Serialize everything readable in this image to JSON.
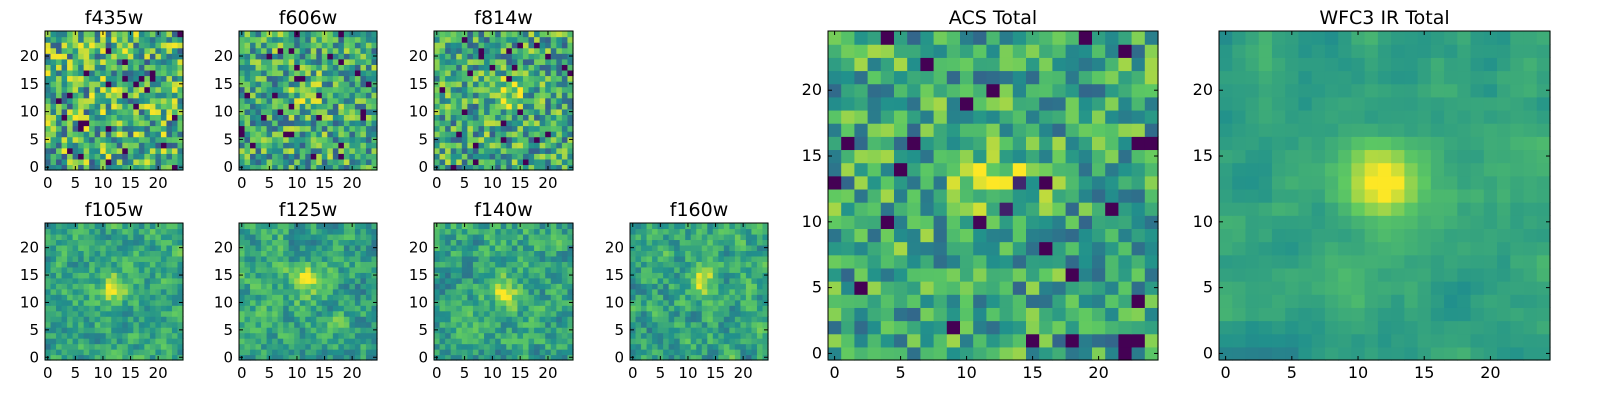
{
  "figure": {
    "colormap": "viridis",
    "colormap_stops": [
      "#440154",
      "#3b528b",
      "#21918c",
      "#5ec962",
      "#fde725"
    ]
  },
  "chart_data": [
    {
      "type": "heatmap",
      "title": "f435w",
      "xlim": [
        0,
        24
      ],
      "ylim": [
        0,
        24
      ],
      "xticks": [
        0,
        5,
        10,
        15,
        20
      ],
      "yticks": [
        0,
        5,
        10,
        15,
        20
      ],
      "source_peak": [
        12,
        13
      ],
      "peak_strength": 0.05,
      "noise_level": 0.38,
      "smoothness": 0.0,
      "seed": 11
    },
    {
      "type": "heatmap",
      "title": "f606w",
      "xlim": [
        0,
        24
      ],
      "ylim": [
        0,
        24
      ],
      "xticks": [
        0,
        5,
        10,
        15,
        20
      ],
      "yticks": [
        0,
        5,
        10,
        15,
        20
      ],
      "source_peak": [
        12,
        13
      ],
      "peak_strength": 0.25,
      "noise_level": 0.32,
      "smoothness": 0.0,
      "seed": 23
    },
    {
      "type": "heatmap",
      "title": "f814w",
      "xlim": [
        0,
        24
      ],
      "ylim": [
        0,
        24
      ],
      "xticks": [
        0,
        5,
        10,
        15,
        20
      ],
      "yticks": [
        0,
        5,
        10,
        15,
        20
      ],
      "source_peak": [
        13,
        13
      ],
      "peak_strength": 0.3,
      "noise_level": 0.32,
      "smoothness": 0.0,
      "seed": 37
    },
    {
      "type": "heatmap",
      "title": "f105w",
      "xlim": [
        0,
        24
      ],
      "ylim": [
        0,
        24
      ],
      "xticks": [
        0,
        5,
        10,
        15,
        20
      ],
      "yticks": [
        0,
        5,
        10,
        15,
        20
      ],
      "source_peak": [
        12,
        13
      ],
      "peak_strength": 0.35,
      "noise_level": 0.28,
      "smoothness": 0.5,
      "seed": 41
    },
    {
      "type": "heatmap",
      "title": "f125w",
      "xlim": [
        0,
        24
      ],
      "ylim": [
        0,
        24
      ],
      "xticks": [
        0,
        5,
        10,
        15,
        20
      ],
      "yticks": [
        0,
        5,
        10,
        15,
        20
      ],
      "source_peak": [
        12,
        14
      ],
      "peak_strength": 0.3,
      "noise_level": 0.3,
      "smoothness": 0.5,
      "seed": 53
    },
    {
      "type": "heatmap",
      "title": "f140w",
      "xlim": [
        0,
        24
      ],
      "ylim": [
        0,
        24
      ],
      "xticks": [
        0,
        5,
        10,
        15,
        20
      ],
      "yticks": [
        0,
        5,
        10,
        15,
        20
      ],
      "source_peak": [
        12,
        12
      ],
      "peak_strength": 0.3,
      "noise_level": 0.3,
      "smoothness": 0.5,
      "seed": 67
    },
    {
      "type": "heatmap",
      "title": "f160w",
      "xlim": [
        0,
        24
      ],
      "ylim": [
        0,
        24
      ],
      "xticks": [
        0,
        5,
        10,
        15,
        20
      ],
      "yticks": [
        0,
        5,
        10,
        15,
        20
      ],
      "source_peak": [
        13,
        14
      ],
      "peak_strength": 0.3,
      "noise_level": 0.3,
      "smoothness": 0.5,
      "seed": 79
    },
    {
      "type": "heatmap",
      "title": "ACS Total",
      "xlim": [
        0,
        24
      ],
      "ylim": [
        0,
        24
      ],
      "xticks": [
        0,
        5,
        10,
        15,
        20
      ],
      "yticks": [
        0,
        5,
        10,
        15,
        20
      ],
      "source_peak": [
        12,
        13
      ],
      "peak_strength": 0.35,
      "noise_level": 0.28,
      "smoothness": 0.0,
      "seed": 83
    },
    {
      "type": "heatmap",
      "title": "WFC3 IR Total",
      "xlim": [
        0,
        24
      ],
      "ylim": [
        0,
        24
      ],
      "xticks": [
        0,
        5,
        10,
        15,
        20
      ],
      "yticks": [
        0,
        5,
        10,
        15,
        20
      ],
      "source_peak": [
        12,
        13
      ],
      "peak_strength": 0.45,
      "noise_level": 0.18,
      "smoothness": 1.0,
      "seed": 97
    }
  ]
}
